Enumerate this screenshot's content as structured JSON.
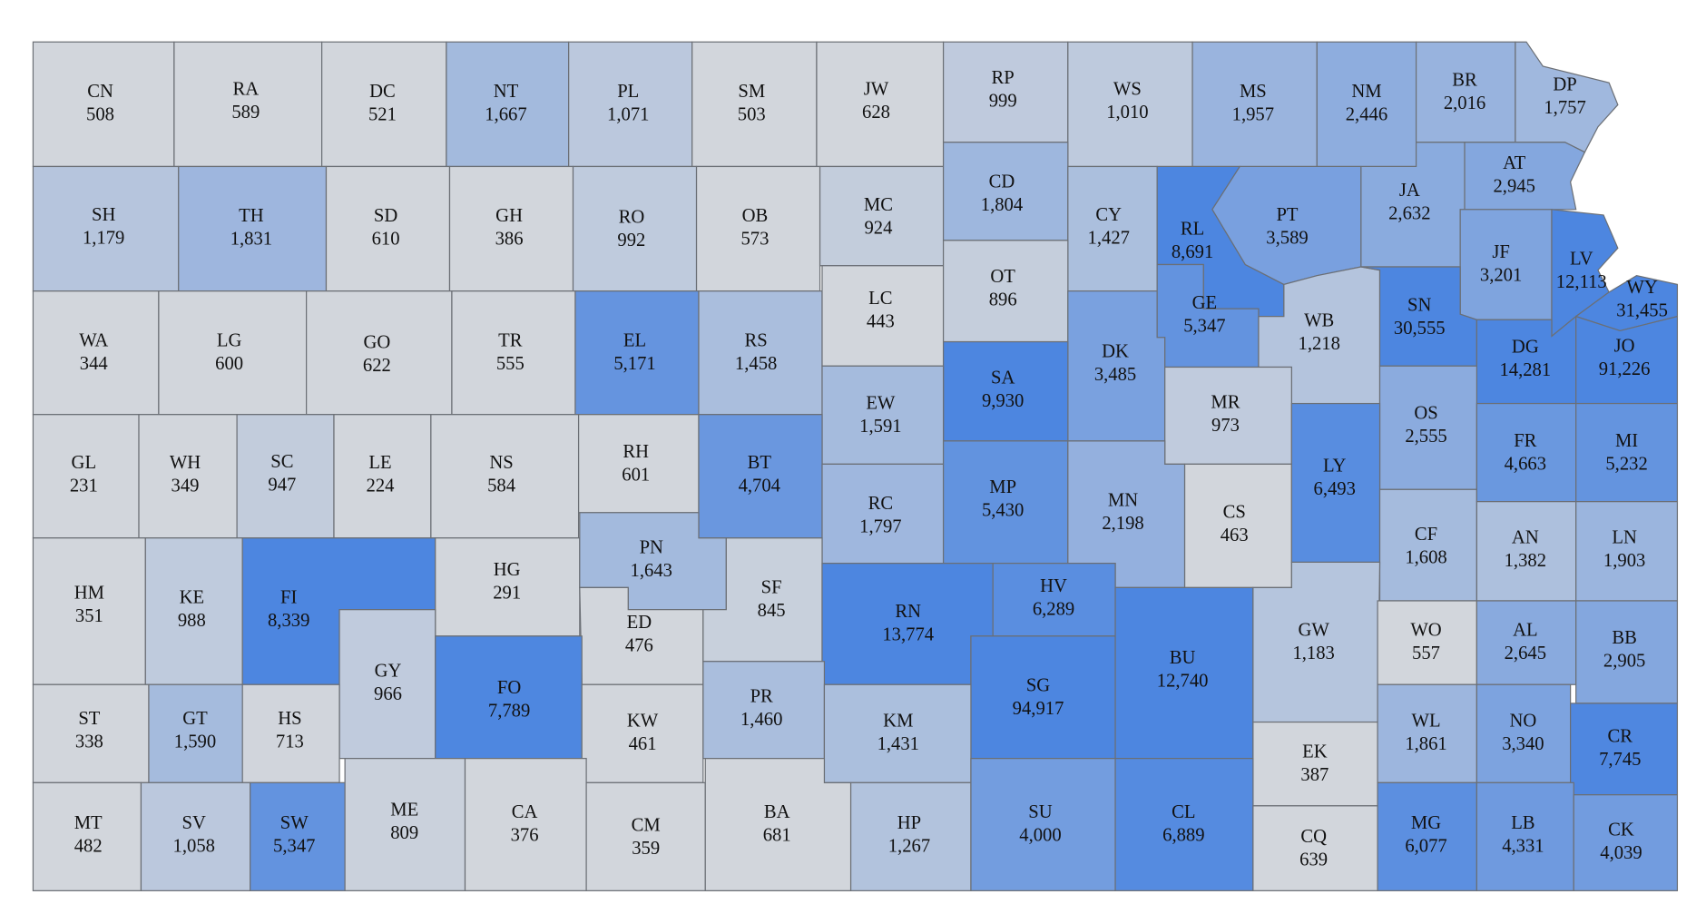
{
  "map": {
    "counties": [
      {
        "code": "CN",
        "value": 508
      },
      {
        "code": "RA",
        "value": 589
      },
      {
        "code": "DC",
        "value": 521
      },
      {
        "code": "NT",
        "value": 1667,
        "label": "1,667"
      },
      {
        "code": "PL",
        "value": 1071,
        "label": "1,071"
      },
      {
        "code": "SM",
        "value": 503
      },
      {
        "code": "JW",
        "value": 628
      },
      {
        "code": "RP",
        "value": 999
      },
      {
        "code": "WS",
        "value": 1010,
        "label": "1,010"
      },
      {
        "code": "MS",
        "value": 1957,
        "label": "1,957"
      },
      {
        "code": "NM",
        "value": 2446,
        "label": "2,446"
      },
      {
        "code": "BR",
        "value": 2016,
        "label": "2,016"
      },
      {
        "code": "DP",
        "value": 1757,
        "label": "1,757"
      },
      {
        "code": "SH",
        "value": 1179,
        "label": "1,179"
      },
      {
        "code": "TH",
        "value": 1831,
        "label": "1,831"
      },
      {
        "code": "SD",
        "value": 610
      },
      {
        "code": "GH",
        "value": 386
      },
      {
        "code": "RO",
        "value": 992
      },
      {
        "code": "OB",
        "value": 573
      },
      {
        "code": "MC",
        "value": 924
      },
      {
        "code": "CD",
        "value": 1804,
        "label": "1,804"
      },
      {
        "code": "CY",
        "value": 1427,
        "label": "1,427"
      },
      {
        "code": "RL",
        "value": 8691,
        "label": "8,691"
      },
      {
        "code": "PT",
        "value": 3589,
        "label": "3,589"
      },
      {
        "code": "JA",
        "value": 2632,
        "label": "2,632"
      },
      {
        "code": "AT",
        "value": 2945,
        "label": "2,945"
      },
      {
        "code": "JF",
        "value": 3201,
        "label": "3,201"
      },
      {
        "code": "LV",
        "value": 12113,
        "label": "12,113"
      },
      {
        "code": "WY",
        "value": 31455,
        "label": "31,455"
      },
      {
        "code": "WA",
        "value": 344
      },
      {
        "code": "LG",
        "value": 600
      },
      {
        "code": "GO",
        "value": 622
      },
      {
        "code": "TR",
        "value": 555
      },
      {
        "code": "EL",
        "value": 5171,
        "label": "5,171"
      },
      {
        "code": "RS",
        "value": 1458,
        "label": "1,458"
      },
      {
        "code": "LC",
        "value": 443
      },
      {
        "code": "OT",
        "value": 896
      },
      {
        "code": "DK",
        "value": 3485,
        "label": "3,485"
      },
      {
        "code": "GE",
        "value": 5347,
        "label": "5,347"
      },
      {
        "code": "WB",
        "value": 1218,
        "label": "1,218"
      },
      {
        "code": "SN",
        "value": 30555,
        "label": "30,555"
      },
      {
        "code": "DG",
        "value": 14281,
        "label": "14,281"
      },
      {
        "code": "JO",
        "value": 91226,
        "label": "91,226"
      },
      {
        "code": "SA",
        "value": 9930,
        "label": "9,930"
      },
      {
        "code": "EW",
        "value": 1591,
        "label": "1,591"
      },
      {
        "code": "MR",
        "value": 973
      },
      {
        "code": "OS",
        "value": 2555,
        "label": "2,555"
      },
      {
        "code": "GL",
        "value": 231
      },
      {
        "code": "WH",
        "value": 349
      },
      {
        "code": "SC",
        "value": 947
      },
      {
        "code": "LE",
        "value": 224
      },
      {
        "code": "NS",
        "value": 584
      },
      {
        "code": "RH",
        "value": 601
      },
      {
        "code": "BT",
        "value": 4704,
        "label": "4,704"
      },
      {
        "code": "RC",
        "value": 1797,
        "label": "1,797"
      },
      {
        "code": "MP",
        "value": 5430,
        "label": "5,430"
      },
      {
        "code": "MN",
        "value": 2198,
        "label": "2,198"
      },
      {
        "code": "CS",
        "value": 463
      },
      {
        "code": "LY",
        "value": 6493,
        "label": "6,493"
      },
      {
        "code": "CF",
        "value": 1608,
        "label": "1,608"
      },
      {
        "code": "FR",
        "value": 4663,
        "label": "4,663"
      },
      {
        "code": "MI",
        "value": 5232,
        "label": "5,232"
      },
      {
        "code": "HM",
        "value": 351
      },
      {
        "code": "KE",
        "value": 988
      },
      {
        "code": "FI",
        "value": 8339,
        "label": "8,339"
      },
      {
        "code": "HG",
        "value": 291
      },
      {
        "code": "PN",
        "value": 1643,
        "label": "1,643"
      },
      {
        "code": "ED",
        "value": 476
      },
      {
        "code": "SF",
        "value": 845
      },
      {
        "code": "RN",
        "value": 13774,
        "label": "13,774"
      },
      {
        "code": "HV",
        "value": 6289,
        "label": "6,289"
      },
      {
        "code": "SG",
        "value": 94917,
        "label": "94,917"
      },
      {
        "code": "BU",
        "value": 12740,
        "label": "12,740"
      },
      {
        "code": "GW",
        "value": 1183,
        "label": "1,183"
      },
      {
        "code": "WO",
        "value": 557
      },
      {
        "code": "AN",
        "value": 1382,
        "label": "1,382"
      },
      {
        "code": "LN",
        "value": 1903,
        "label": "1,903"
      },
      {
        "code": "AL",
        "value": 2645,
        "label": "2,645"
      },
      {
        "code": "BB",
        "value": 2905,
        "label": "2,905"
      },
      {
        "code": "GY",
        "value": 966
      },
      {
        "code": "FO",
        "value": 7789,
        "label": "7,789"
      },
      {
        "code": "ST",
        "value": 338
      },
      {
        "code": "GT",
        "value": 1590,
        "label": "1,590"
      },
      {
        "code": "HS",
        "value": 713
      },
      {
        "code": "KW",
        "value": 461
      },
      {
        "code": "PR",
        "value": 1460,
        "label": "1,460"
      },
      {
        "code": "KM",
        "value": 1431,
        "label": "1,431"
      },
      {
        "code": "EK",
        "value": 387
      },
      {
        "code": "WL",
        "value": 1861,
        "label": "1,861"
      },
      {
        "code": "NO",
        "value": 3340,
        "label": "3,340"
      },
      {
        "code": "CR",
        "value": 7745,
        "label": "7,745"
      },
      {
        "code": "MT",
        "value": 482
      },
      {
        "code": "SV",
        "value": 1058,
        "label": "1,058"
      },
      {
        "code": "SW",
        "value": 5347,
        "label": "5,347"
      },
      {
        "code": "ME",
        "value": 809
      },
      {
        "code": "CA",
        "value": 376
      },
      {
        "code": "CM",
        "value": 359
      },
      {
        "code": "BA",
        "value": 681
      },
      {
        "code": "HP",
        "value": 1267,
        "label": "1,267"
      },
      {
        "code": "SU",
        "value": 4000,
        "label": "4,000"
      },
      {
        "code": "CL",
        "value": 6889,
        "label": "6,889"
      },
      {
        "code": "CQ",
        "value": 639
      },
      {
        "code": "MG",
        "value": 6077,
        "label": "6,077"
      },
      {
        "code": "LB",
        "value": 4331,
        "label": "4,331"
      },
      {
        "code": "CK",
        "value": 4039,
        "label": "4,039"
      }
    ]
  }
}
